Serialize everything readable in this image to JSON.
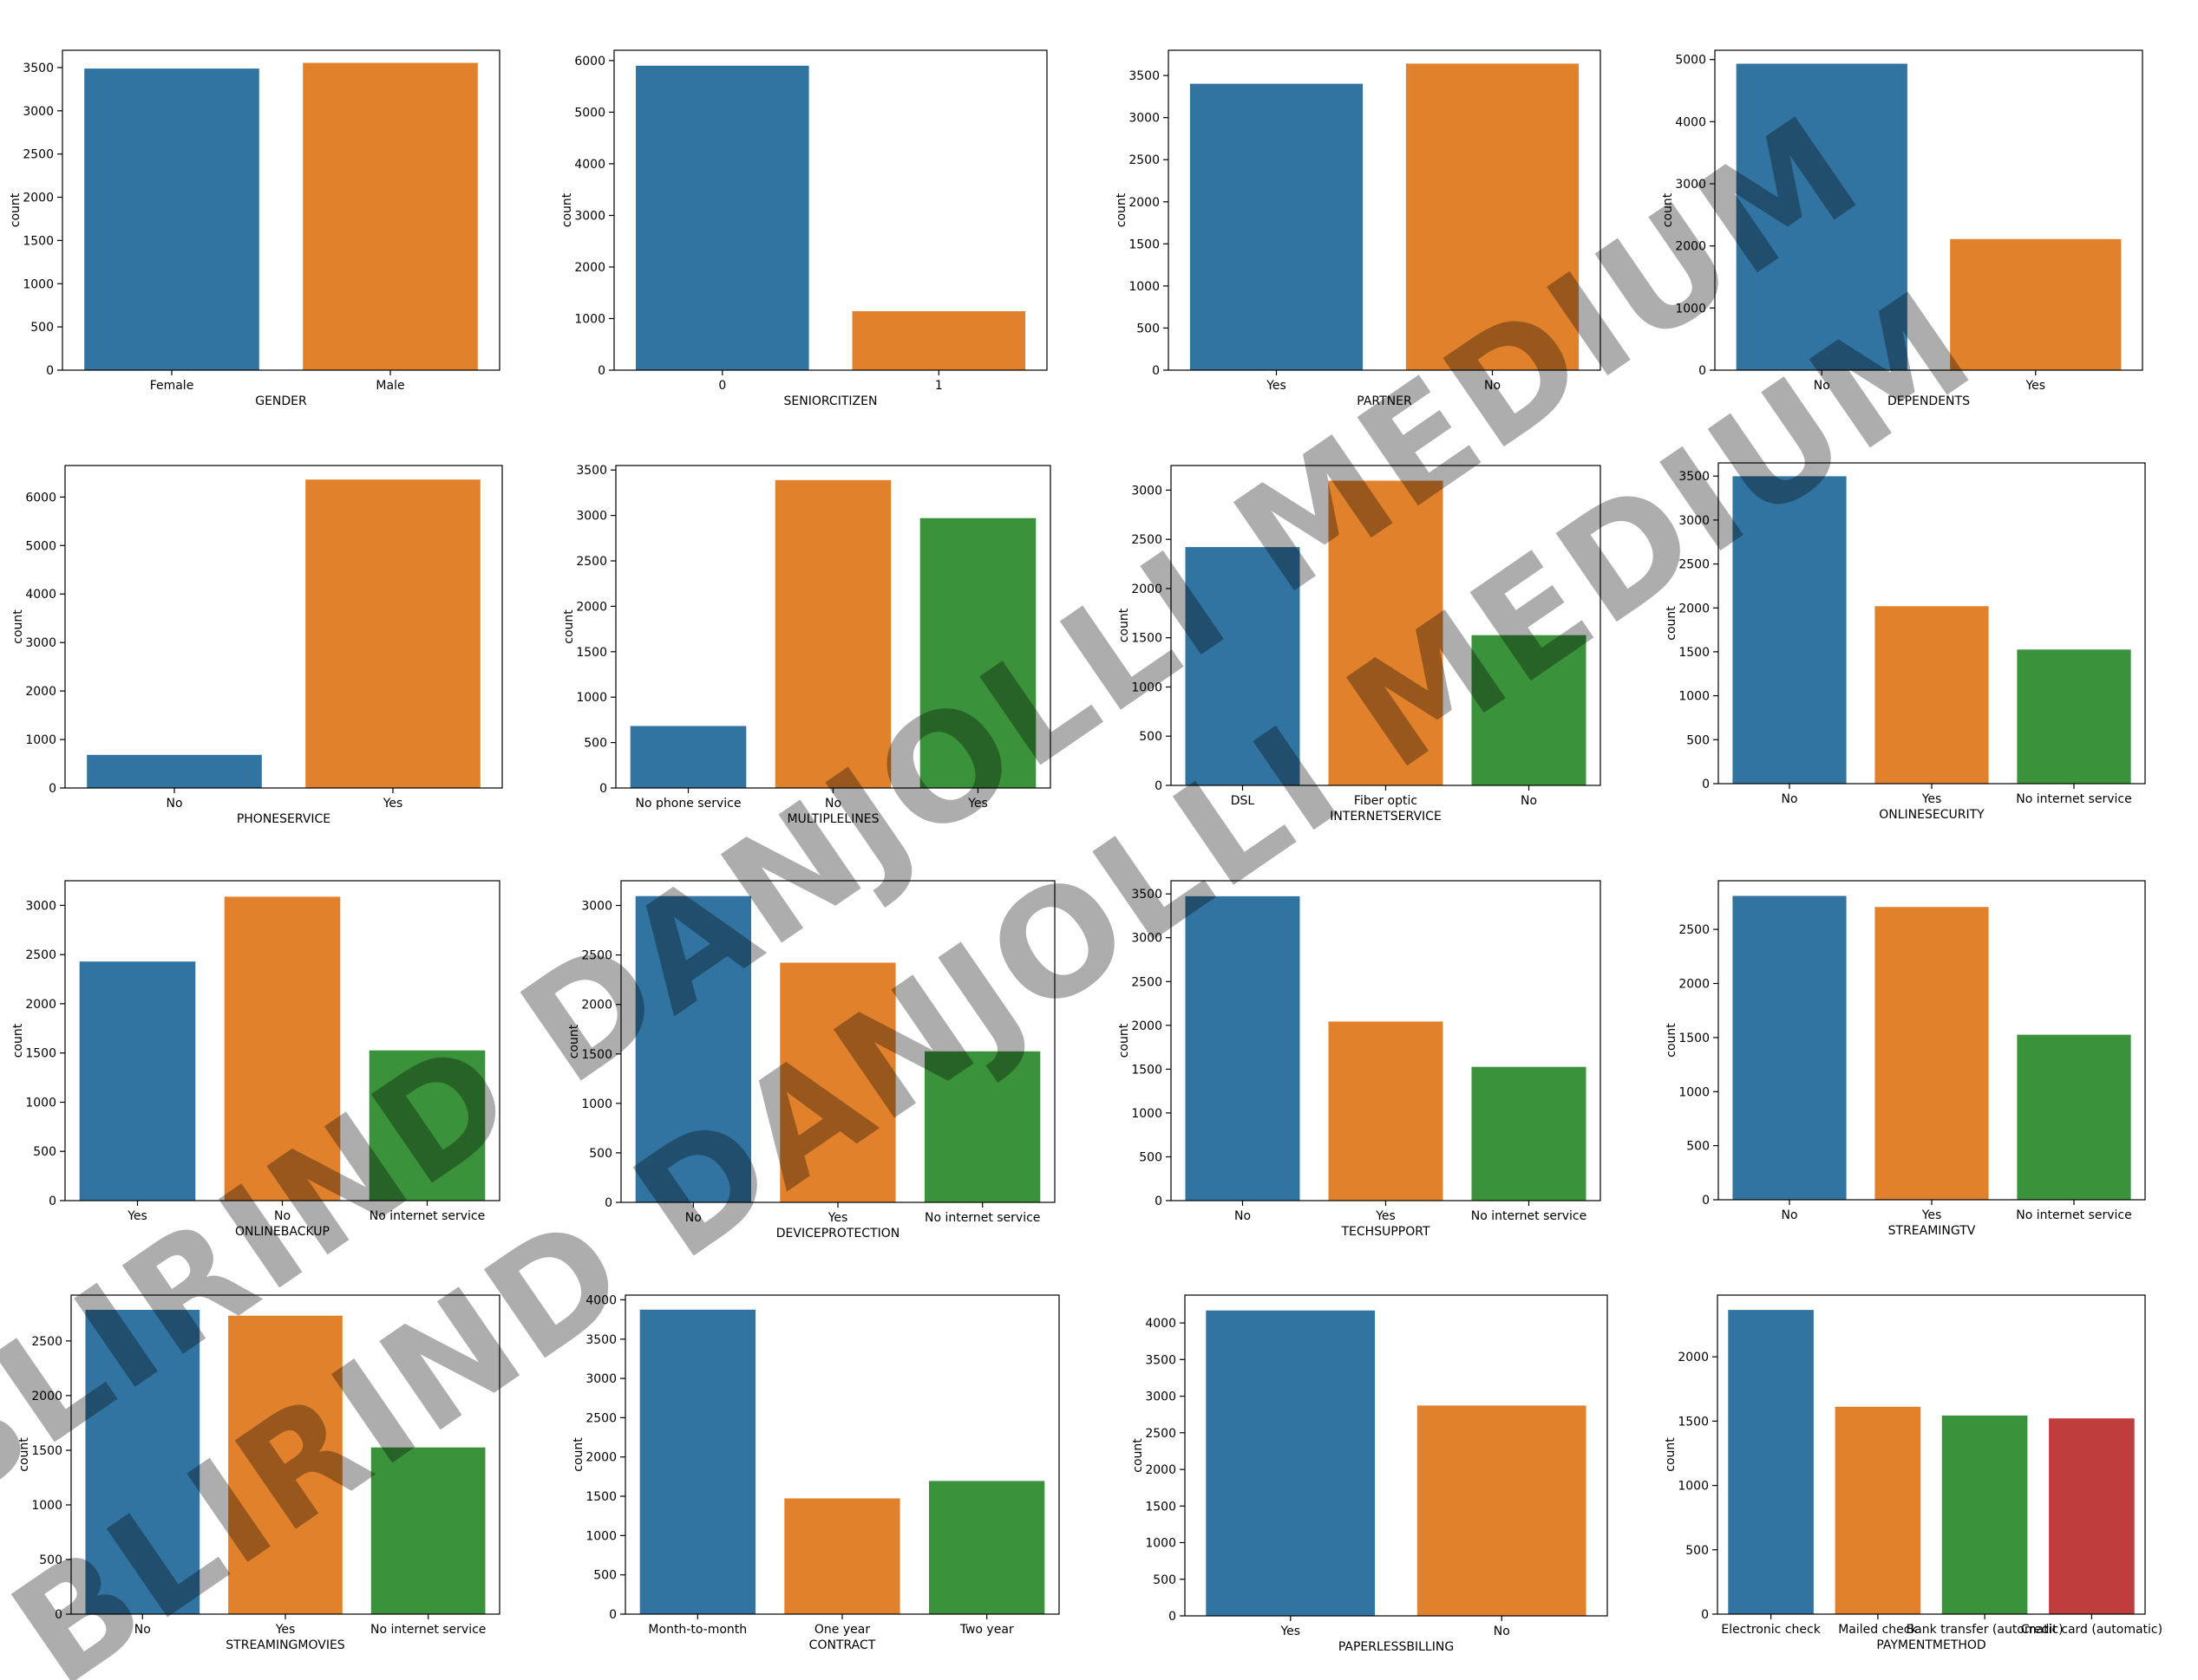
{
  "watermark": {
    "text": "BLIRIND DANJOLLI MEDIUM"
  },
  "chart_data": [
    {
      "type": "bar",
      "xlabel": "GENDER",
      "ylabel": "count",
      "categories": [
        "Female",
        "Male"
      ],
      "values": [
        3488,
        3555
      ],
      "ylim": [
        0,
        3700
      ],
      "yticks": [
        0,
        500,
        1000,
        1500,
        2000,
        2500,
        3000,
        3500
      ],
      "colors": [
        "#3274a1",
        "#e1812c"
      ]
    },
    {
      "type": "bar",
      "xlabel": "SENIORCITIZEN",
      "ylabel": "count",
      "categories": [
        "0",
        "1"
      ],
      "values": [
        5901,
        1142
      ],
      "ylim": [
        0,
        6200
      ],
      "yticks": [
        0,
        1000,
        2000,
        3000,
        4000,
        5000,
        6000
      ],
      "colors": [
        "#3274a1",
        "#e1812c"
      ]
    },
    {
      "type": "bar",
      "xlabel": "PARTNER",
      "ylabel": "count",
      "categories": [
        "Yes",
        "No"
      ],
      "values": [
        3402,
        3641
      ],
      "ylim": [
        0,
        3800
      ],
      "yticks": [
        0,
        500,
        1000,
        1500,
        2000,
        2500,
        3000,
        3500
      ],
      "colors": [
        "#3274a1",
        "#e1812c"
      ]
    },
    {
      "type": "bar",
      "xlabel": "DEPENDENTS",
      "ylabel": "count",
      "categories": [
        "No",
        "Yes"
      ],
      "values": [
        4933,
        2110
      ],
      "ylim": [
        0,
        5150
      ],
      "yticks": [
        0,
        1000,
        2000,
        3000,
        4000,
        5000
      ],
      "colors": [
        "#3274a1",
        "#e1812c"
      ]
    },
    {
      "type": "bar",
      "xlabel": "PHONESERVICE",
      "ylabel": "count",
      "categories": [
        "No",
        "Yes"
      ],
      "values": [
        682,
        6361
      ],
      "ylim": [
        0,
        6650
      ],
      "yticks": [
        0,
        1000,
        2000,
        3000,
        4000,
        5000,
        6000
      ],
      "colors": [
        "#3274a1",
        "#e1812c"
      ]
    },
    {
      "type": "bar",
      "xlabel": "MULTIPLELINES",
      "ylabel": "count",
      "categories": [
        "No phone service",
        "No",
        "Yes"
      ],
      "values": [
        682,
        3390,
        2971
      ],
      "ylim": [
        0,
        3550
      ],
      "yticks": [
        0,
        500,
        1000,
        1500,
        2000,
        2500,
        3000,
        3500
      ],
      "colors": [
        "#3274a1",
        "#e1812c",
        "#3a923a"
      ]
    },
    {
      "type": "bar",
      "xlabel": "INTERNETSERVICE",
      "ylabel": "count",
      "categories": [
        "DSL",
        "Fiber optic",
        "No"
      ],
      "values": [
        2421,
        3096,
        1526
      ],
      "ylim": [
        0,
        3250
      ],
      "yticks": [
        0,
        500,
        1000,
        1500,
        2000,
        2500,
        3000
      ],
      "colors": [
        "#3274a1",
        "#e1812c",
        "#3a923a"
      ]
    },
    {
      "type": "bar",
      "xlabel": "ONLINESECURITY",
      "ylabel": "count",
      "categories": [
        "No",
        "Yes",
        "No internet service"
      ],
      "values": [
        3498,
        2019,
        1526
      ],
      "ylim": [
        0,
        3650
      ],
      "yticks": [
        0,
        500,
        1000,
        1500,
        2000,
        2500,
        3000,
        3500
      ],
      "colors": [
        "#3274a1",
        "#e1812c",
        "#3a923a"
      ]
    },
    {
      "type": "bar",
      "xlabel": "ONLINEBACKUP",
      "ylabel": "count",
      "categories": [
        "Yes",
        "No",
        "No internet service"
      ],
      "values": [
        2429,
        3088,
        1526
      ],
      "ylim": [
        0,
        3250
      ],
      "yticks": [
        0,
        500,
        1000,
        1500,
        2000,
        2500,
        3000
      ],
      "colors": [
        "#3274a1",
        "#e1812c",
        "#3a923a"
      ]
    },
    {
      "type": "bar",
      "xlabel": "DEVICEPROTECTION",
      "ylabel": "count",
      "categories": [
        "No",
        "Yes",
        "No internet service"
      ],
      "values": [
        3095,
        2422,
        1526
      ],
      "ylim": [
        0,
        3250
      ],
      "yticks": [
        0,
        500,
        1000,
        1500,
        2000,
        2500,
        3000
      ],
      "colors": [
        "#3274a1",
        "#e1812c",
        "#3a923a"
      ]
    },
    {
      "type": "bar",
      "xlabel": "TECHSUPPORT",
      "ylabel": "count",
      "categories": [
        "No",
        "Yes",
        "No internet service"
      ],
      "values": [
        3473,
        2044,
        1526
      ],
      "ylim": [
        0,
        3650
      ],
      "yticks": [
        0,
        500,
        1000,
        1500,
        2000,
        2500,
        3000,
        3500
      ],
      "colors": [
        "#3274a1",
        "#e1812c",
        "#3a923a"
      ]
    },
    {
      "type": "bar",
      "xlabel": "STREAMINGTV",
      "ylabel": "count",
      "categories": [
        "No",
        "Yes",
        "No internet service"
      ],
      "values": [
        2810,
        2707,
        1526
      ],
      "ylim": [
        0,
        2950
      ],
      "yticks": [
        0,
        500,
        1000,
        1500,
        2000,
        2500
      ],
      "colors": [
        "#3274a1",
        "#e1812c",
        "#3a923a"
      ]
    },
    {
      "type": "bar",
      "xlabel": "STREAMINGMOVIES",
      "ylabel": "count",
      "categories": [
        "No",
        "Yes",
        "No internet service"
      ],
      "values": [
        2785,
        2732,
        1526
      ],
      "ylim": [
        0,
        2920
      ],
      "yticks": [
        0,
        500,
        1000,
        1500,
        2000,
        2500
      ],
      "colors": [
        "#3274a1",
        "#e1812c",
        "#3a923a"
      ]
    },
    {
      "type": "bar",
      "xlabel": "CONTRACT",
      "ylabel": "count",
      "categories": [
        "Month-to-month",
        "One year",
        "Two year"
      ],
      "values": [
        3875,
        1473,
        1695
      ],
      "ylim": [
        0,
        4060
      ],
      "yticks": [
        0,
        500,
        1000,
        1500,
        2000,
        2500,
        3000,
        3500,
        4000
      ],
      "colors": [
        "#3274a1",
        "#e1812c",
        "#3a923a"
      ]
    },
    {
      "type": "bar",
      "xlabel": "PAPERLESSBILLING",
      "ylabel": "count",
      "categories": [
        "Yes",
        "No"
      ],
      "values": [
        4171,
        2872
      ],
      "ylim": [
        0,
        4380
      ],
      "yticks": [
        0,
        500,
        1000,
        1500,
        2000,
        2500,
        3000,
        3500,
        4000
      ],
      "colors": [
        "#3274a1",
        "#e1812c"
      ]
    },
    {
      "type": "bar",
      "xlabel": "PAYMENTMETHOD",
      "ylabel": "count",
      "categories": [
        "Electronic check",
        "Mailed check",
        "Bank transfer (automatic)",
        "Credit card (automatic)"
      ],
      "values": [
        2365,
        1612,
        1544,
        1522
      ],
      "ylim": [
        0,
        2480
      ],
      "yticks": [
        0,
        500,
        1000,
        1500,
        2000
      ],
      "colors": [
        "#3274a1",
        "#e1812c",
        "#3a923a",
        "#c03d3e"
      ]
    }
  ]
}
